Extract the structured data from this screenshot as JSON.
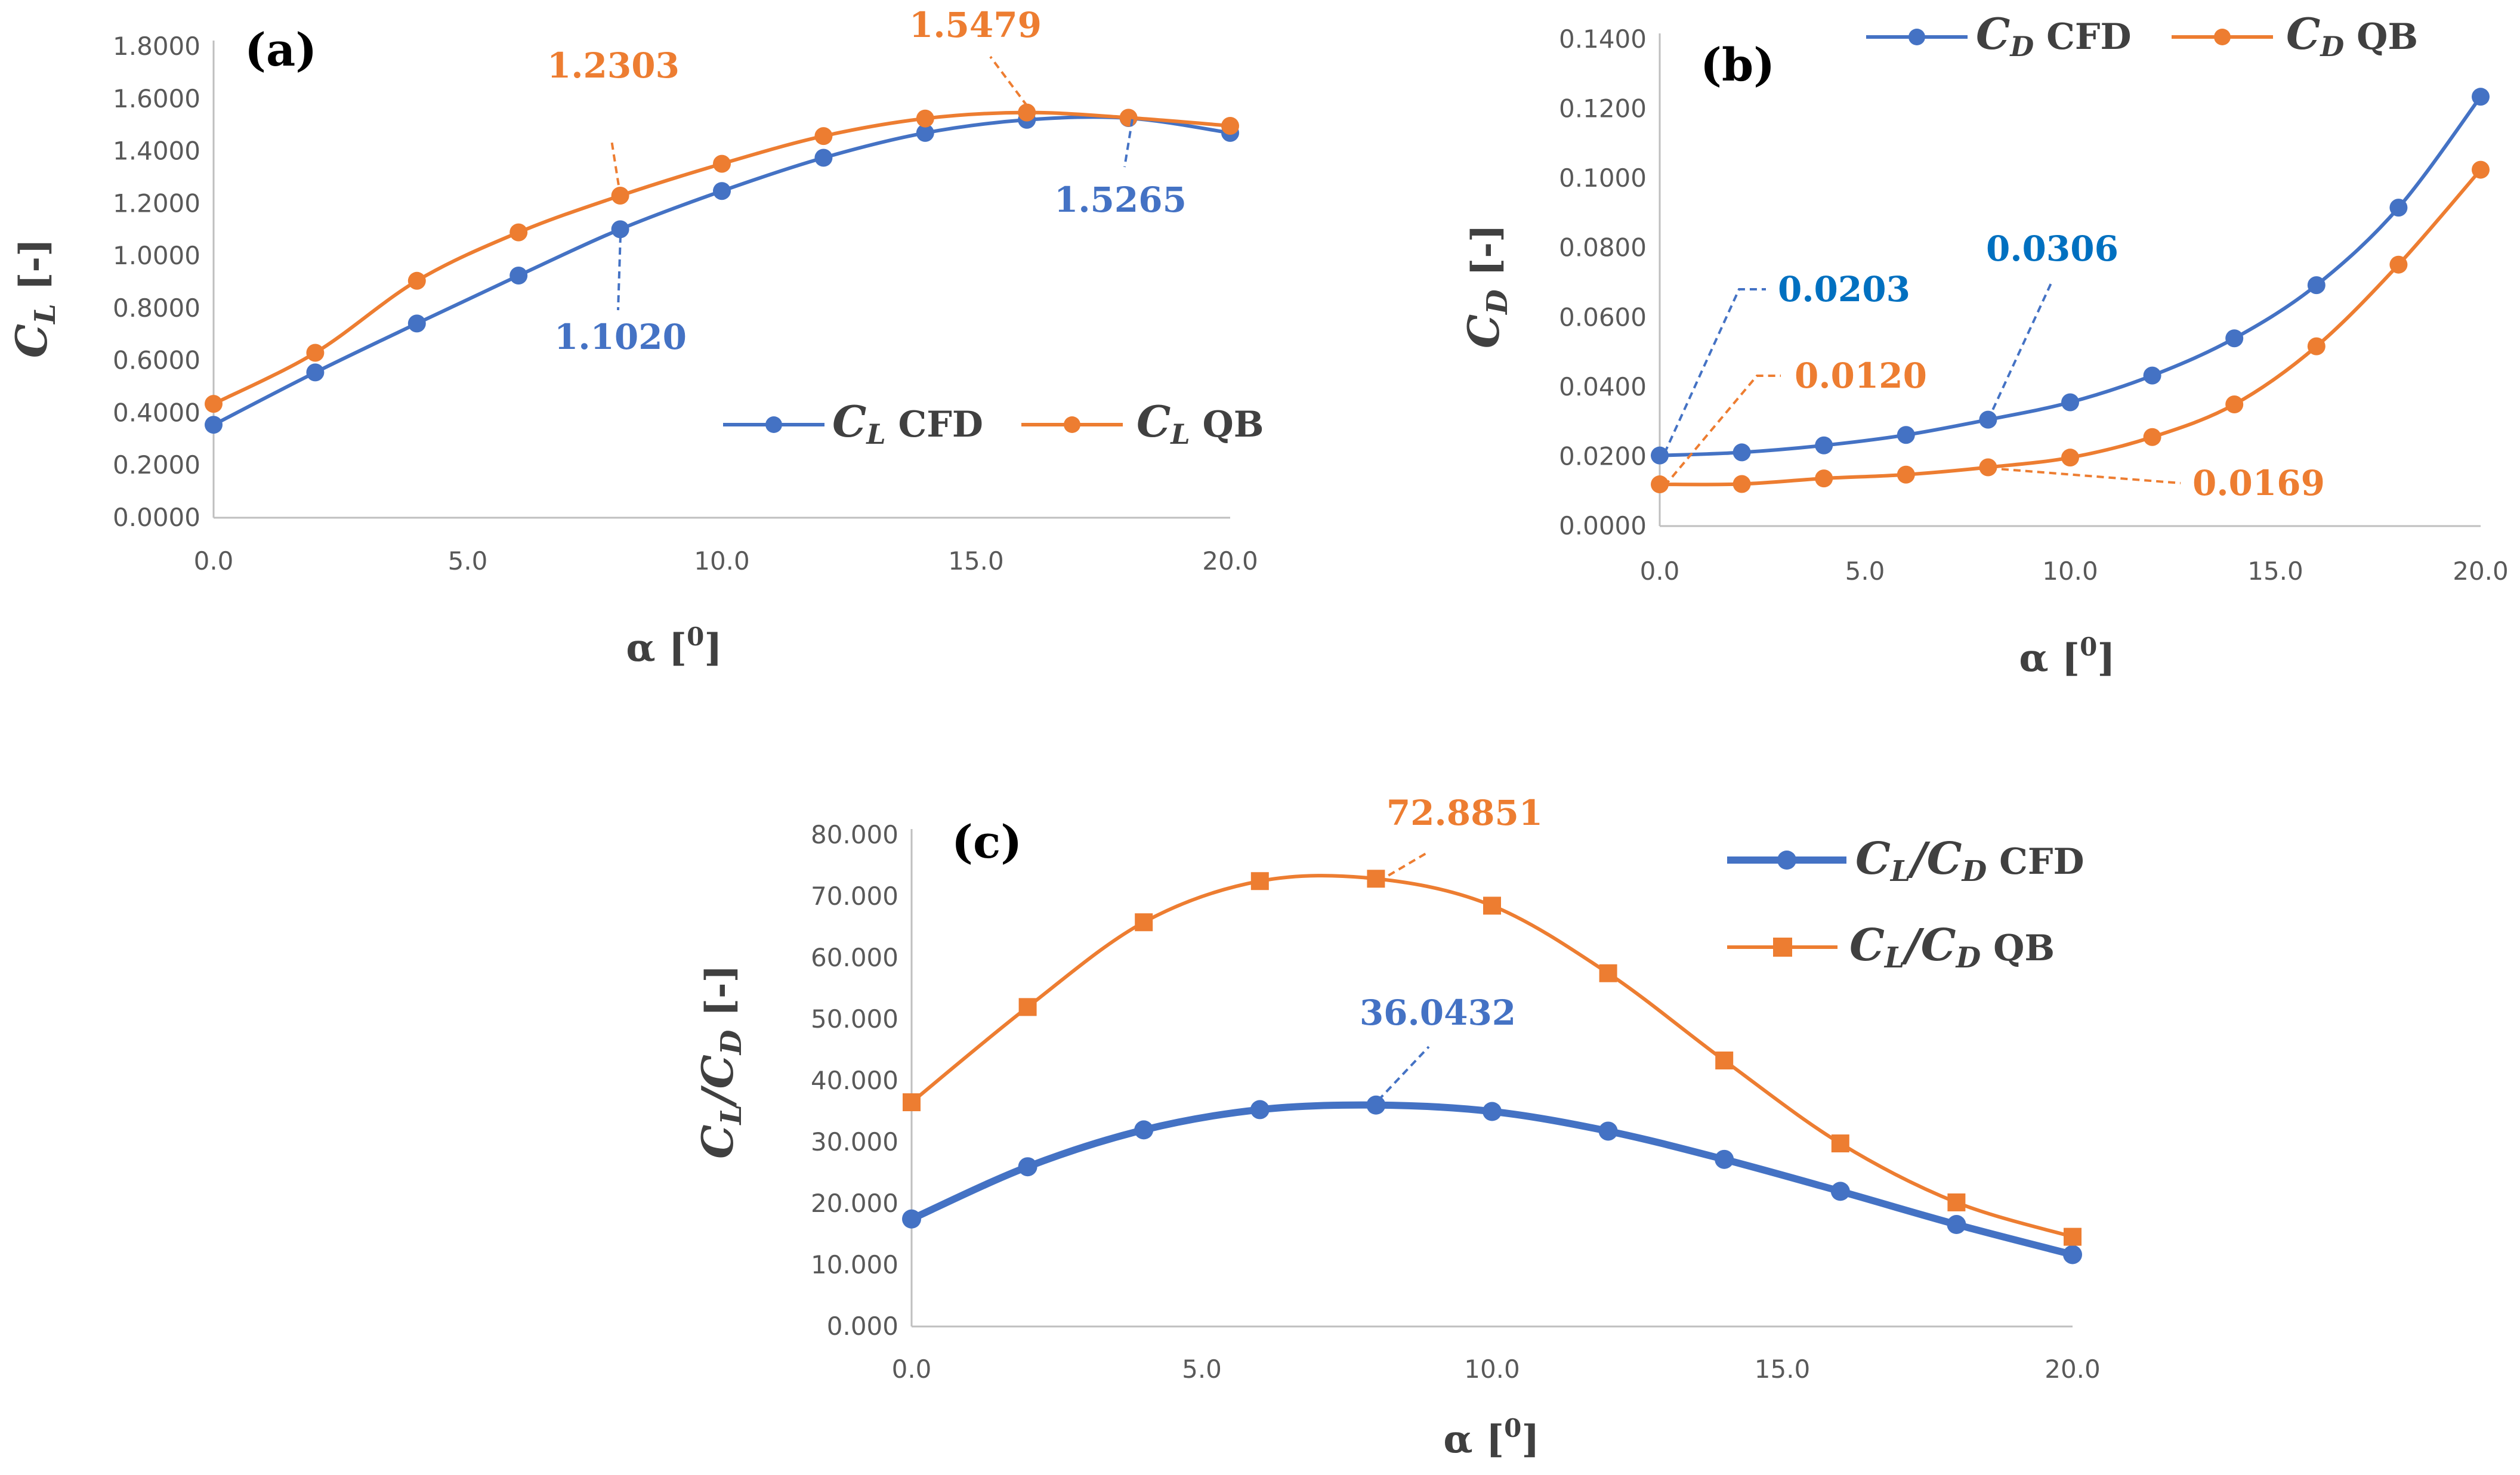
{
  "colors": {
    "cfd": "#4472C4",
    "qb": "#ED7D31",
    "axis": "#BFBFBF",
    "tick_text": "#595959",
    "title_text": "#404040",
    "annot_blue_b": "#0070C0"
  },
  "chart_data": [
    {
      "type": "line",
      "panel_label": "(a)",
      "xlabel": "α [0]",
      "ylabel": "CL [-]",
      "x": [
        0,
        2,
        4,
        6,
        8,
        10,
        12,
        14,
        16,
        18,
        20
      ],
      "xlim": [
        0,
        20
      ],
      "xticks": [
        "0.0",
        "5.0",
        "10.0",
        "15.0",
        "20.0"
      ],
      "ylim": [
        0,
        1.8
      ],
      "yticks": [
        "0.0000",
        "0.2000",
        "0.4000",
        "0.6000",
        "0.8000",
        "1.0000",
        "1.2000",
        "1.4000",
        "1.6000",
        "1.8000"
      ],
      "legend_position": "bottom-right",
      "series": [
        {
          "name": "CL CFD",
          "marker": "circle",
          "values": [
            0.355,
            0.555,
            0.742,
            0.925,
            1.102,
            1.248,
            1.375,
            1.47,
            1.52,
            1.5265,
            1.47
          ]
        },
        {
          "name": "CL QB",
          "marker": "circle",
          "values": [
            0.435,
            0.63,
            0.905,
            1.09,
            1.2303,
            1.352,
            1.458,
            1.525,
            1.5479,
            1.528,
            1.497
          ]
        }
      ],
      "annotations": [
        {
          "text": "1.2303",
          "series": "qb",
          "x": 8
        },
        {
          "text": "1.5479",
          "series": "qb",
          "x": 16
        },
        {
          "text": "1.1020",
          "series": "cfd",
          "x": 8
        },
        {
          "text": "1.5265",
          "series": "cfd",
          "x": 18
        }
      ]
    },
    {
      "type": "line",
      "panel_label": "(b)",
      "xlabel": "α [0]",
      "ylabel": "CD [-]",
      "x": [
        0,
        2,
        4,
        6,
        8,
        10,
        12,
        14,
        16,
        18,
        20
      ],
      "xlim": [
        0,
        20
      ],
      "xticks": [
        "0.0",
        "5.0",
        "10.0",
        "15.0",
        "20.0"
      ],
      "ylim": [
        0,
        0.14
      ],
      "yticks": [
        "0.0000",
        "0.0200",
        "0.0400",
        "0.0600",
        "0.0800",
        "0.1000",
        "0.1200",
        "0.1400"
      ],
      "legend_position": "top-right",
      "series": [
        {
          "name": "CD CFD",
          "marker": "circle",
          "values": [
            0.0203,
            0.0212,
            0.0232,
            0.0262,
            0.0306,
            0.0356,
            0.0433,
            0.054,
            0.0693,
            0.0916,
            0.1235
          ]
        },
        {
          "name": "CD QB",
          "marker": "circle",
          "values": [
            0.012,
            0.0121,
            0.0137,
            0.0148,
            0.0169,
            0.0197,
            0.0256,
            0.035,
            0.0517,
            0.0752,
            0.1025
          ]
        }
      ],
      "annotations": [
        {
          "text": "0.0203",
          "series": "cfd",
          "x": 0
        },
        {
          "text": "0.0306",
          "series": "cfd",
          "x": 8
        },
        {
          "text": "0.0120",
          "series": "qb",
          "x": 0
        },
        {
          "text": "0.0169",
          "series": "qb",
          "x": 8
        }
      ]
    },
    {
      "type": "line",
      "panel_label": "(c)",
      "xlabel": "α [0]",
      "ylabel": "CL/CD [-]",
      "x": [
        0,
        2,
        4,
        6,
        8,
        10,
        12,
        14,
        16,
        18,
        20
      ],
      "xlim": [
        0,
        20
      ],
      "xticks": [
        "0.0",
        "5.0",
        "10.0",
        "15.0",
        "20.0"
      ],
      "ylim": [
        0,
        80
      ],
      "yticks": [
        "0.000",
        "10.000",
        "20.000",
        "30.000",
        "40.000",
        "50.000",
        "60.000",
        "70.000",
        "80.000"
      ],
      "legend_position": "top-right",
      "series": [
        {
          "name": "CL/CD CFD",
          "marker": "circle",
          "values": [
            17.5,
            26.0,
            32.0,
            35.3,
            36.0432,
            35.0,
            31.8,
            27.2,
            22.0,
            16.6,
            11.7
          ]
        },
        {
          "name": "CL/CD QB",
          "marker": "square",
          "values": [
            36.5,
            52.0,
            65.8,
            72.5,
            72.8851,
            68.5,
            57.5,
            43.3,
            29.8,
            20.2,
            14.6
          ]
        }
      ],
      "annotations": [
        {
          "text": "72.8851",
          "series": "qb",
          "x": 8
        },
        {
          "text": "36.0432",
          "series": "cfd",
          "x": 8
        }
      ]
    }
  ],
  "legend_labels": {
    "a_cfd_main": "C",
    "a_cfd_sub": "L",
    "a_cfd_rest": " CFD",
    "a_qb_main": "C",
    "a_qb_sub": "L",
    "a_qb_rest": " QB",
    "b_cfd_main": "C",
    "b_cfd_sub": "D",
    "b_cfd_rest": " CFD",
    "b_qb_main": "C",
    "b_qb_sub": "D",
    "b_qb_rest": " QB",
    "c_cfd_main": "C",
    "c_cfd_sub1": "L",
    "c_cfd_mid": "/C",
    "c_cfd_sub2": "D",
    "c_cfd_rest": " CFD",
    "c_qb_main": "C",
    "c_qb_sub1": "L",
    "c_qb_mid": "/C",
    "c_qb_sub2": "D",
    "c_qb_rest": " QB"
  },
  "axis_titles": {
    "alpha_main": "α [",
    "alpha_sup": "0",
    "alpha_close": "]",
    "a_y_main": "C",
    "a_y_sub": "L",
    "a_y_rest": " [-]",
    "b_y_main": "C",
    "b_y_sub": "D",
    "b_y_rest": " [-]",
    "c_y_main": "C",
    "c_y_sub1": "L",
    "c_y_mid": "/C",
    "c_y_sub2": "D",
    "c_y_rest": " [-]"
  }
}
